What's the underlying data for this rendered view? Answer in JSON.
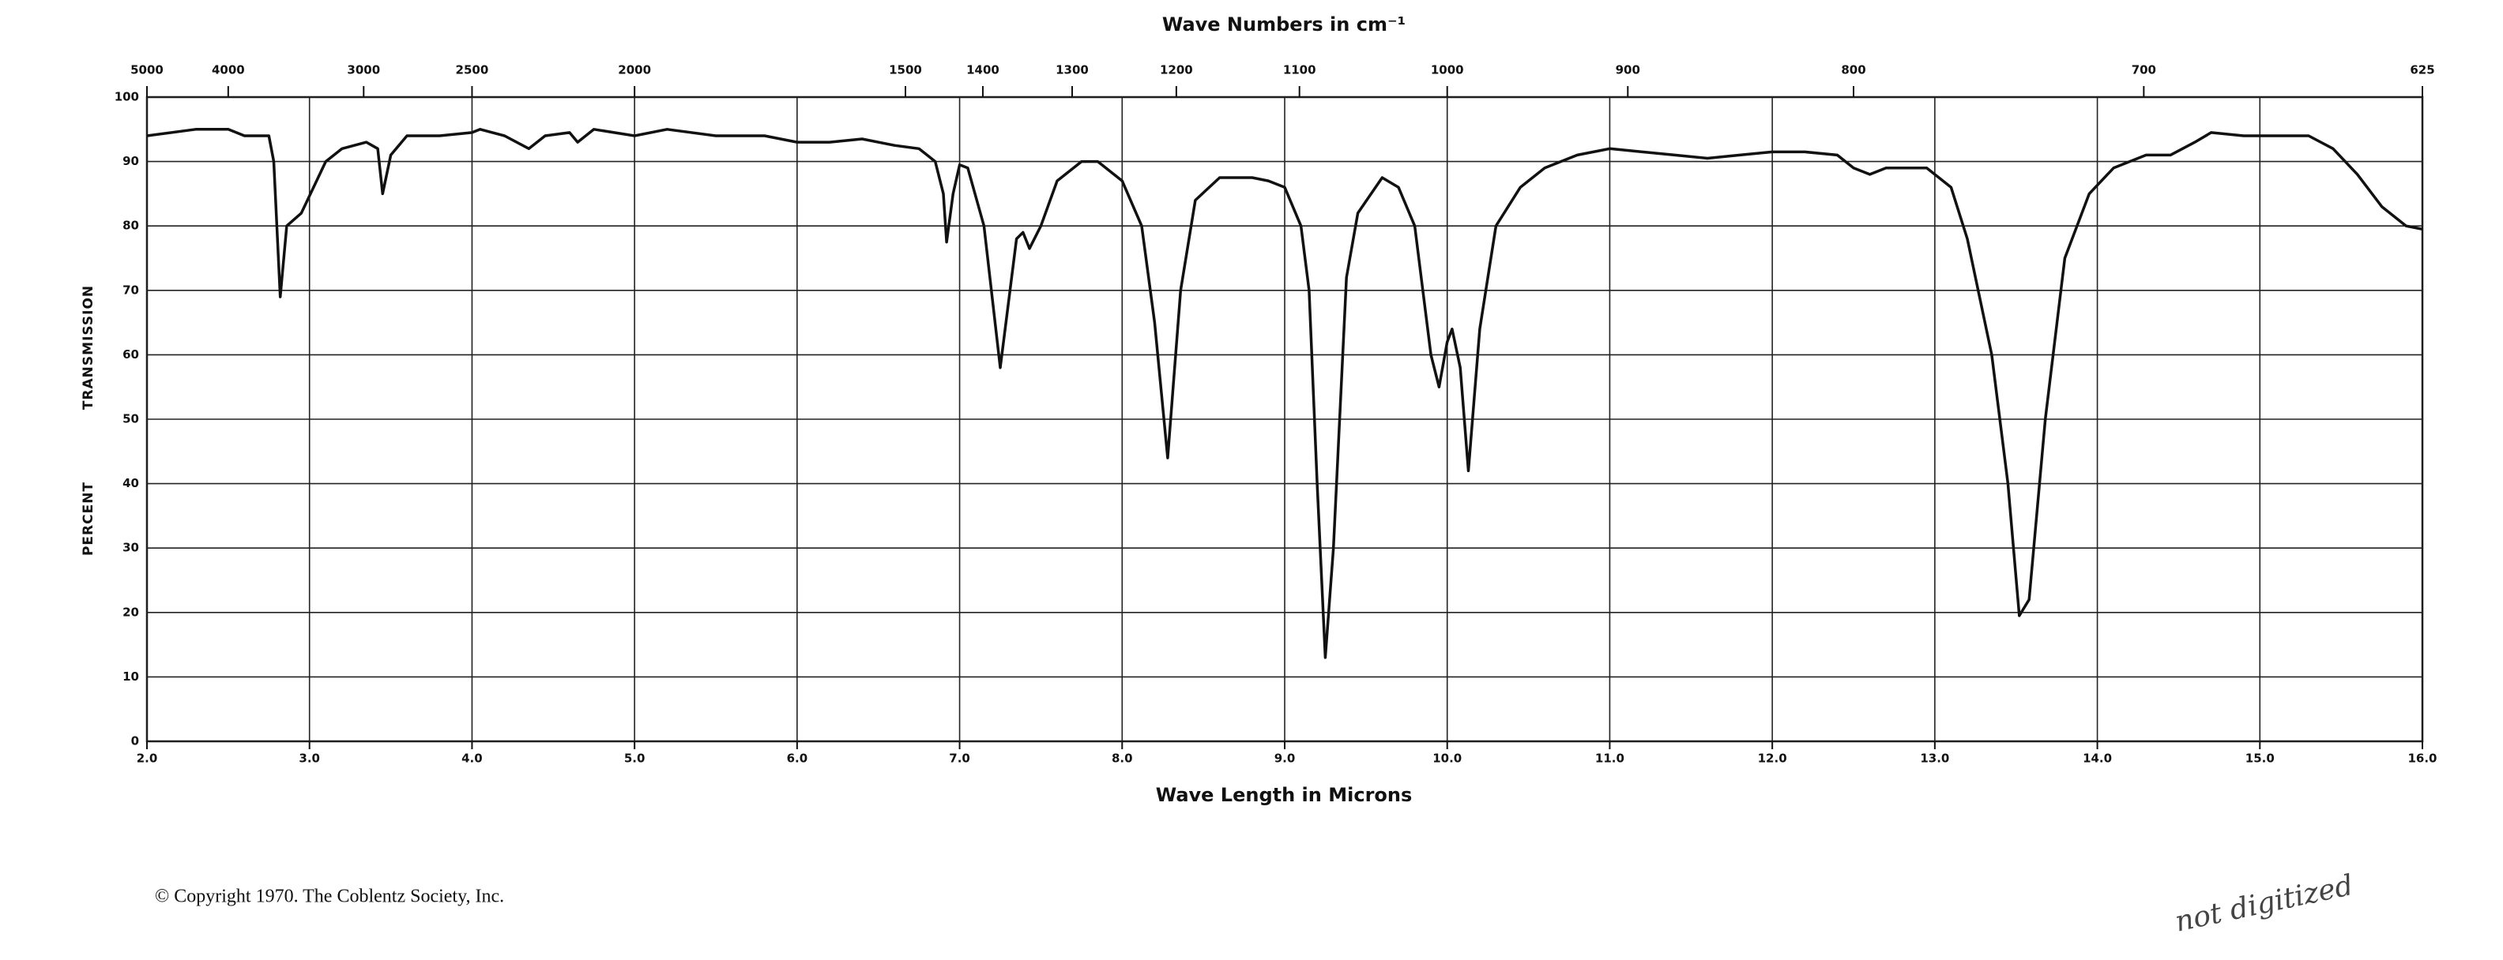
{
  "chart_data": {
    "type": "line",
    "title": "Wave Numbers in cm⁻¹",
    "xlabel": "Wave Length in Microns",
    "ylabel": [
      "TRANSMISSION",
      "PERCENT"
    ],
    "footer": "© Copyright 1970.  The Coblentz Society, Inc.",
    "annotation": "not digitized",
    "color": "#111111",
    "grid": true,
    "xlim": [
      2,
      16
    ],
    "ylim": [
      0,
      100
    ],
    "xticks": [
      {
        "value": 2,
        "label": "2.0"
      },
      {
        "value": 3,
        "label": "3.0"
      },
      {
        "value": 4,
        "label": "4.0"
      },
      {
        "value": 5,
        "label": "5.0"
      },
      {
        "value": 6,
        "label": "6.0"
      },
      {
        "value": 7,
        "label": "7.0"
      },
      {
        "value": 8,
        "label": "8.0"
      },
      {
        "value": 9,
        "label": "9.0"
      },
      {
        "value": 10,
        "label": "10.0"
      },
      {
        "value": 11,
        "label": "11.0"
      },
      {
        "value": 12,
        "label": "12.0"
      },
      {
        "value": 13,
        "label": "13.0"
      },
      {
        "value": 14,
        "label": "14.0"
      },
      {
        "value": 15,
        "label": "15.0"
      },
      {
        "value": 16,
        "label": "16.0"
      }
    ],
    "x2ticks": [
      5000,
      4000,
      3000,
      2500,
      2000,
      1500,
      1400,
      1300,
      1200,
      1100,
      1000,
      900,
      800,
      700,
      625
    ],
    "yticks": [
      0,
      10,
      20,
      30,
      40,
      50,
      60,
      70,
      80,
      90,
      100
    ],
    "x": [
      2.0,
      2.3,
      2.5,
      2.6,
      2.75,
      2.78,
      2.82,
      2.86,
      2.95,
      3.1,
      3.2,
      3.35,
      3.42,
      3.45,
      3.5,
      3.6,
      3.8,
      4.0,
      4.05,
      4.2,
      4.35,
      4.45,
      4.6,
      4.65,
      4.75,
      5.0,
      5.2,
      5.5,
      5.8,
      6.0,
      6.2,
      6.4,
      6.6,
      6.75,
      6.8,
      6.85,
      6.9,
      6.92,
      6.96,
      7.0,
      7.05,
      7.15,
      7.25,
      7.3,
      7.35,
      7.39,
      7.43,
      7.5,
      7.6,
      7.75,
      7.85,
      8.0,
      8.12,
      8.2,
      8.28,
      8.36,
      8.45,
      8.6,
      8.8,
      8.9,
      9.0,
      9.1,
      9.15,
      9.2,
      9.25,
      9.3,
      9.38,
      9.45,
      9.6,
      9.7,
      9.8,
      9.9,
      9.95,
      10.0,
      10.03,
      10.08,
      10.13,
      10.2,
      10.3,
      10.45,
      10.6,
      10.8,
      11.0,
      11.2,
      11.4,
      11.6,
      11.8,
      12.0,
      12.2,
      12.4,
      12.5,
      12.6,
      12.7,
      12.95,
      13.1,
      13.2,
      13.35,
      13.45,
      13.52,
      13.58,
      13.68,
      13.8,
      13.95,
      14.1,
      14.3,
      14.45,
      14.6,
      14.7,
      14.9,
      15.1,
      15.3,
      15.45,
      15.6,
      15.75,
      15.9,
      16.0
    ],
    "values": [
      94,
      95,
      95,
      94,
      94,
      90,
      69,
      80,
      82,
      90,
      92,
      93,
      92,
      85,
      91,
      94,
      94,
      94.5,
      95,
      94,
      92,
      94,
      94.5,
      93,
      95,
      94,
      95,
      94,
      94,
      93,
      93,
      93.5,
      92.5,
      92,
      91,
      90,
      85,
      77.5,
      85,
      89.5,
      89,
      80,
      58,
      68,
      78,
      79,
      76.5,
      80,
      87,
      90,
      90,
      87,
      80,
      65,
      44,
      70,
      84,
      87.5,
      87.5,
      87,
      86,
      80,
      70,
      40,
      13,
      30,
      72,
      82,
      87.5,
      86,
      80,
      60,
      55,
      62,
      64,
      58,
      42,
      64,
      80,
      86,
      89,
      91,
      92,
      91.5,
      91,
      90.5,
      91,
      91.5,
      91.5,
      91,
      89,
      88,
      89,
      89,
      86,
      78,
      60,
      40,
      19.5,
      22,
      50,
      75,
      85,
      89,
      91,
      91,
      93,
      94.5,
      94,
      94,
      94,
      92,
      88,
      83,
      80,
      79.5
    ]
  }
}
